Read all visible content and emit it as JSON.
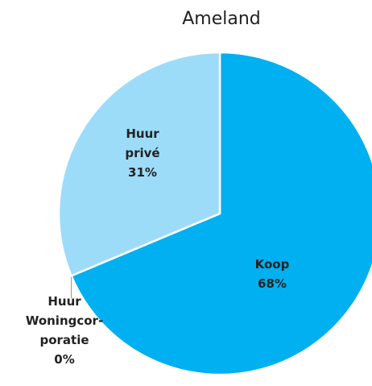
{
  "chart_data": {
    "type": "pie",
    "title": "Ameland",
    "categories": [
      "Koop",
      "Huur Woningcor-poratie",
      "Huur privé"
    ],
    "values": [
      68,
      0,
      31
    ],
    "value_labels": [
      "68%",
      "0%",
      "31%"
    ],
    "colors": [
      "#00b0f0",
      "#00b0f0",
      "#9ddcf9"
    ]
  }
}
